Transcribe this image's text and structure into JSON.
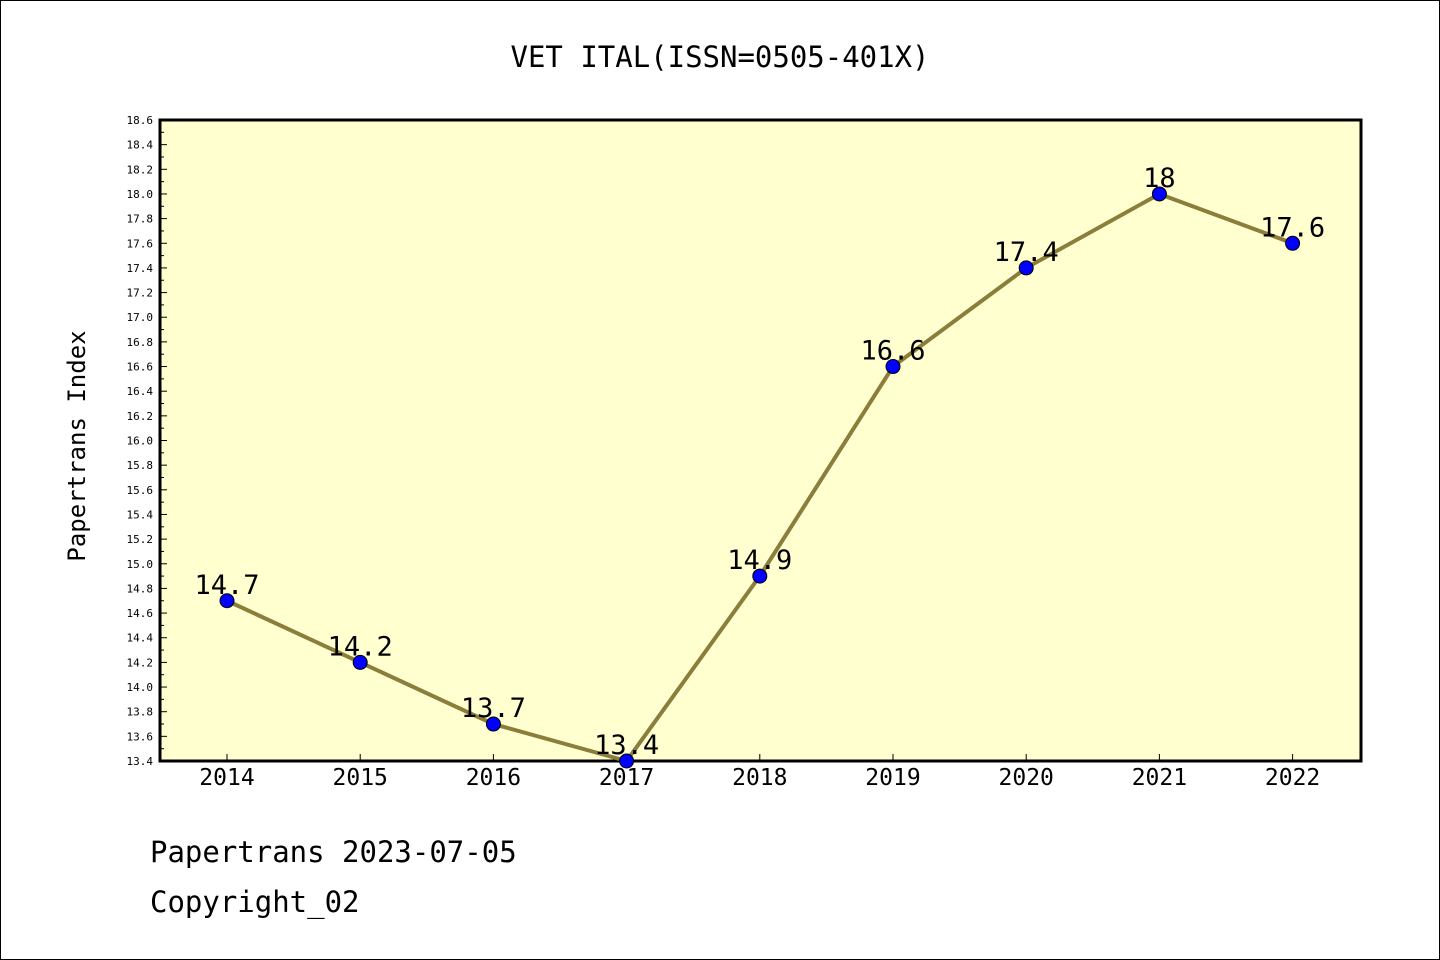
{
  "footer": {
    "line1": "Papertrans 2023-07-05",
    "line2": "Copyright_02"
  },
  "chart_data": {
    "type": "line",
    "title": "VET ITAL(ISSN=0505-401X)",
    "ylabel": "Papertrans Index",
    "xlabel": "",
    "categories": [
      "2014",
      "2015",
      "2016",
      "2017",
      "2018",
      "2019",
      "2020",
      "2021",
      "2022"
    ],
    "values": [
      14.7,
      14.2,
      13.7,
      13.4,
      14.9,
      16.6,
      17.4,
      18.0,
      17.6
    ],
    "data_labels": [
      "14.7",
      "14.2",
      "13.7",
      "13.4",
      "14.9",
      "16.6",
      "17.4",
      "18",
      "17.6"
    ],
    "ylim": [
      13.4,
      18.6
    ],
    "ytick_labels": [
      "13.4",
      "13.6",
      "13.8",
      "14.0",
      "14.2",
      "14.4",
      "14.6",
      "14.8",
      "15.0",
      "15.2",
      "15.4",
      "15.6",
      "15.8",
      "16.0",
      "16.2",
      "16.4",
      "16.6",
      "16.8",
      "17.0",
      "17.2",
      "17.4",
      "17.6",
      "17.8",
      "18.0",
      "18.2",
      "18.4",
      "18.6"
    ],
    "grid": false,
    "colors": {
      "plot_background": "#ffffd0",
      "line": "#8b7d3a",
      "marker": "#0000ff"
    }
  }
}
